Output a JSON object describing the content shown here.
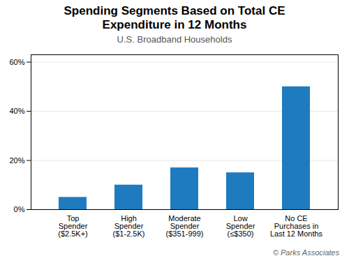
{
  "chart_data": {
    "type": "bar",
    "title": "Spending Segments Based on Total CE\nExpenditure in 12 Months",
    "subtitle": "U.S. Broadband Households",
    "caption": "© Parks Associates",
    "categories": [
      "Top\nSpender\n($2.5K+)",
      "High\nSpender\n($1-2.5K)",
      "Moderate\nSpender\n($351-999)",
      "Low\nSpender\n(≤$350)",
      "No CE\nPurchases in\nLast 12 Months"
    ],
    "values": [
      5,
      10,
      17,
      15,
      50
    ],
    "color": "#1f7bbf",
    "ylim": [
      0,
      63
    ],
    "yticks": [
      {
        "value": 0,
        "label": "0%"
      },
      {
        "value": 20,
        "label": "20%"
      },
      {
        "value": 40,
        "label": "40%"
      },
      {
        "value": 60,
        "label": "60%"
      }
    ],
    "grid": true
  }
}
